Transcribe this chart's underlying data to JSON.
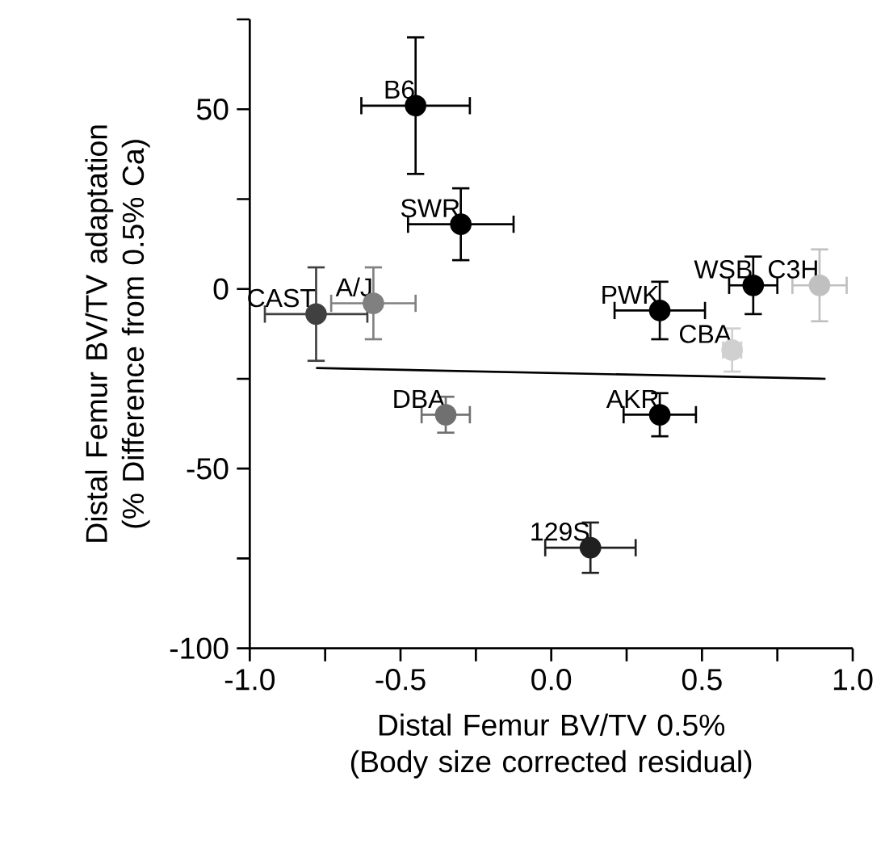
{
  "chart_data": {
    "type": "scatter",
    "xlabel": "Distal Femur BV/TV 0.5% (Body size corrected residual)",
    "ylabel": "Distal Femur BV/TV adaptation (% Difference from 0.5% Ca)",
    "xlim": [
      -1.0,
      1.0
    ],
    "ylim": [
      -100,
      75
    ],
    "xticks": [
      {
        "value": -1.0,
        "label": "-1.0"
      },
      {
        "value": -0.75,
        "label": null
      },
      {
        "value": -0.5,
        "label": "-0.5"
      },
      {
        "value": -0.25,
        "label": null
      },
      {
        "value": 0.0,
        "label": "0.0"
      },
      {
        "value": 0.25,
        "label": null
      },
      {
        "value": 0.5,
        "label": "0.5"
      },
      {
        "value": 0.75,
        "label": null
      },
      {
        "value": 1.0,
        "label": "1.0"
      }
    ],
    "yticks": [
      -100,
      {
        "value": -75,
        "label": null
      },
      -50,
      {
        "value": -25,
        "label": null
      },
      0,
      {
        "value": 25,
        "label": null
      },
      50,
      {
        "value": 75,
        "label": null
      }
    ],
    "series": [
      {
        "marker": "circle",
        "x": [
          -0.45,
          -0.3,
          -0.78,
          -0.59,
          0.36,
          0.67,
          0.89,
          0.6,
          -0.35,
          0.36,
          0.13
        ],
        "values": [
          51,
          18,
          -7,
          -4,
          -6,
          1,
          1,
          -17,
          -35,
          -35,
          -72
        ],
        "colors": [
          "#000000",
          "#000000",
          "#404040",
          "#808080",
          "#000000",
          "#000000",
          "#c0c0c0",
          "#d0d0d0",
          "#707070",
          "#000000",
          "#202020"
        ],
        "errors": [
          19,
          10,
          13,
          10,
          8,
          8,
          10,
          6,
          5,
          6,
          7
        ],
        "xerrors": [
          0.18,
          0.175,
          0.17,
          0.14,
          0.15,
          0.08,
          0.09,
          0.03,
          0.08,
          0.12,
          0.15
        ]
      },
      {
        "type": "line",
        "marker": "none",
        "color": "#000000",
        "x": [
          -0.78,
          0.91
        ],
        "values": [
          -22,
          -25
        ]
      }
    ],
    "annotations": [
      {
        "text": "B6",
        "x": -0.45,
        "y": 51
      },
      {
        "text": "SWR",
        "x": -0.3,
        "y": 18
      },
      {
        "text": "CAST",
        "x": -0.78,
        "y": -7
      },
      {
        "text": "A/J",
        "x": -0.59,
        "y": -4
      },
      {
        "text": "PWK",
        "x": 0.36,
        "y": -6
      },
      {
        "text": "WSB",
        "x": 0.67,
        "y": 1
      },
      {
        "text": "C3H",
        "x": 0.89,
        "y": 1
      },
      {
        "text": "CBA",
        "x": 0.6,
        "y": -17
      },
      {
        "text": "DBA",
        "x": -0.35,
        "y": -35
      },
      {
        "text": "AKR",
        "x": 0.36,
        "y": -35
      },
      {
        "text": "129S",
        "x": 0.13,
        "y": -72
      }
    ]
  }
}
